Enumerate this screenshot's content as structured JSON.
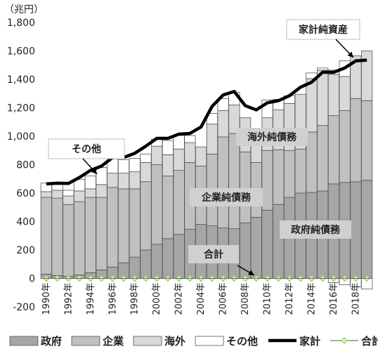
{
  "chart_data": {
    "type": "bar",
    "stacked": true,
    "unit_label": "（兆円）",
    "ylim": [
      -200,
      1800
    ],
    "yticks": [
      -200,
      0,
      200,
      400,
      600,
      800,
      1000,
      1200,
      1400,
      1600,
      1800
    ],
    "yticks_labels": [
      "-200",
      "0",
      "200",
      "400",
      "600",
      "800",
      "1,000",
      "1,200",
      "1,400",
      "1,600",
      "1,800"
    ],
    "x": [
      1990,
      1991,
      1992,
      1993,
      1994,
      1995,
      1996,
      1997,
      1998,
      1999,
      2000,
      2001,
      2002,
      2003,
      2004,
      2005,
      2006,
      2007,
      2008,
      2009,
      2010,
      2011,
      2012,
      2013,
      2014,
      2015,
      2016,
      2017,
      2018,
      2019
    ],
    "x_tick_labels": [
      "1990年",
      "",
      "1992年",
      "",
      "1994年",
      "",
      "1996年",
      "",
      "1998年",
      "",
      "2000年",
      "",
      "2002年",
      "",
      "2004年",
      "",
      "2006年",
      "",
      "2008年",
      "",
      "2010年",
      "",
      "2012年",
      "",
      "2014年",
      "",
      "2016年",
      "",
      "2018年",
      ""
    ],
    "series": [
      {
        "name": "政府",
        "color": "#a6a6a6",
        "values": [
          30,
          20,
          15,
          25,
          40,
          60,
          80,
          110,
          150,
          200,
          240,
          280,
          310,
          345,
          380,
          370,
          355,
          350,
          390,
          430,
          480,
          520,
          570,
          600,
          605,
          615,
          665,
          675,
          680,
          690
        ]
      },
      {
        "name": "企業",
        "color": "#c0c0c0",
        "values": [
          540,
          545,
          505,
          515,
          530,
          510,
          560,
          520,
          480,
          480,
          560,
          440,
          450,
          470,
          410,
          505,
          640,
          670,
          500,
          385,
          420,
          385,
          330,
          310,
          425,
          460,
          480,
          505,
          585,
          560
        ]
      },
      {
        "name": "海外",
        "color": "#d9d9d9",
        "values": [
          40,
          55,
          60,
          75,
          60,
          90,
          100,
          110,
          120,
          135,
          130,
          150,
          150,
          140,
          135,
          210,
          185,
          200,
          240,
          230,
          230,
          280,
          330,
          385,
          375,
          390,
          290,
          240,
          300,
          350
        ]
      },
      {
        "name": "その他",
        "color": "#ffffff",
        "values": [
          60,
          40,
          40,
          80,
          90,
          120,
          105,
          95,
          95,
          60,
          50,
          100,
          95,
          50,
          -10,
          75,
          85,
          90,
          -10,
          5,
          125,
          75,
          55,
          -10,
          40,
          15,
          30,
          110,
          -10,
          -30
        ]
      }
    ],
    "neg_segments": {
      "name": "その他",
      "values": [
        0,
        0,
        0,
        0,
        0,
        0,
        0,
        0,
        0,
        0,
        0,
        0,
        0,
        0,
        0,
        0,
        0,
        0,
        0,
        0,
        0,
        0,
        0,
        0,
        0,
        0,
        -30,
        -45,
        -60,
        -75
      ]
    },
    "household_line": {
      "name": "家計",
      "color": "#000000",
      "values": [
        665,
        670,
        668,
        710,
        760,
        790,
        850,
        850,
        880,
        930,
        985,
        985,
        1015,
        1020,
        1065,
        1210,
        1290,
        1315,
        1215,
        1185,
        1235,
        1250,
        1285,
        1345,
        1380,
        1450,
        1450,
        1480,
        1530,
        1535
      ]
    },
    "total_line": {
      "name": "合計",
      "color": "#92d050",
      "values": [
        0,
        0,
        0,
        0,
        0,
        0,
        0,
        0,
        0,
        0,
        0,
        0,
        0,
        0,
        0,
        0,
        0,
        0,
        0,
        0,
        0,
        0,
        0,
        0,
        0,
        0,
        0,
        0,
        0,
        0
      ]
    },
    "annotations": {
      "household_net_assets": "家計純資産",
      "other": "その他",
      "overseas_net_debt": "海外純債務",
      "corporate_net_debt": "企業純債務",
      "government_net_debt": "政府純債務",
      "total": "合計"
    },
    "legend": [
      {
        "label": "政府",
        "kind": "box",
        "color": "#a6a6a6"
      },
      {
        "label": "企業",
        "kind": "box",
        "color": "#c0c0c0"
      },
      {
        "label": "海外",
        "kind": "box",
        "color": "#d9d9d9"
      },
      {
        "label": "その他",
        "kind": "box",
        "color": "#ffffff"
      },
      {
        "label": "家計",
        "kind": "line",
        "color": "#000000"
      },
      {
        "label": "合計",
        "kind": "diamond",
        "color": "#92d050"
      }
    ],
    "legend_position": "bottom",
    "grid": false
  }
}
